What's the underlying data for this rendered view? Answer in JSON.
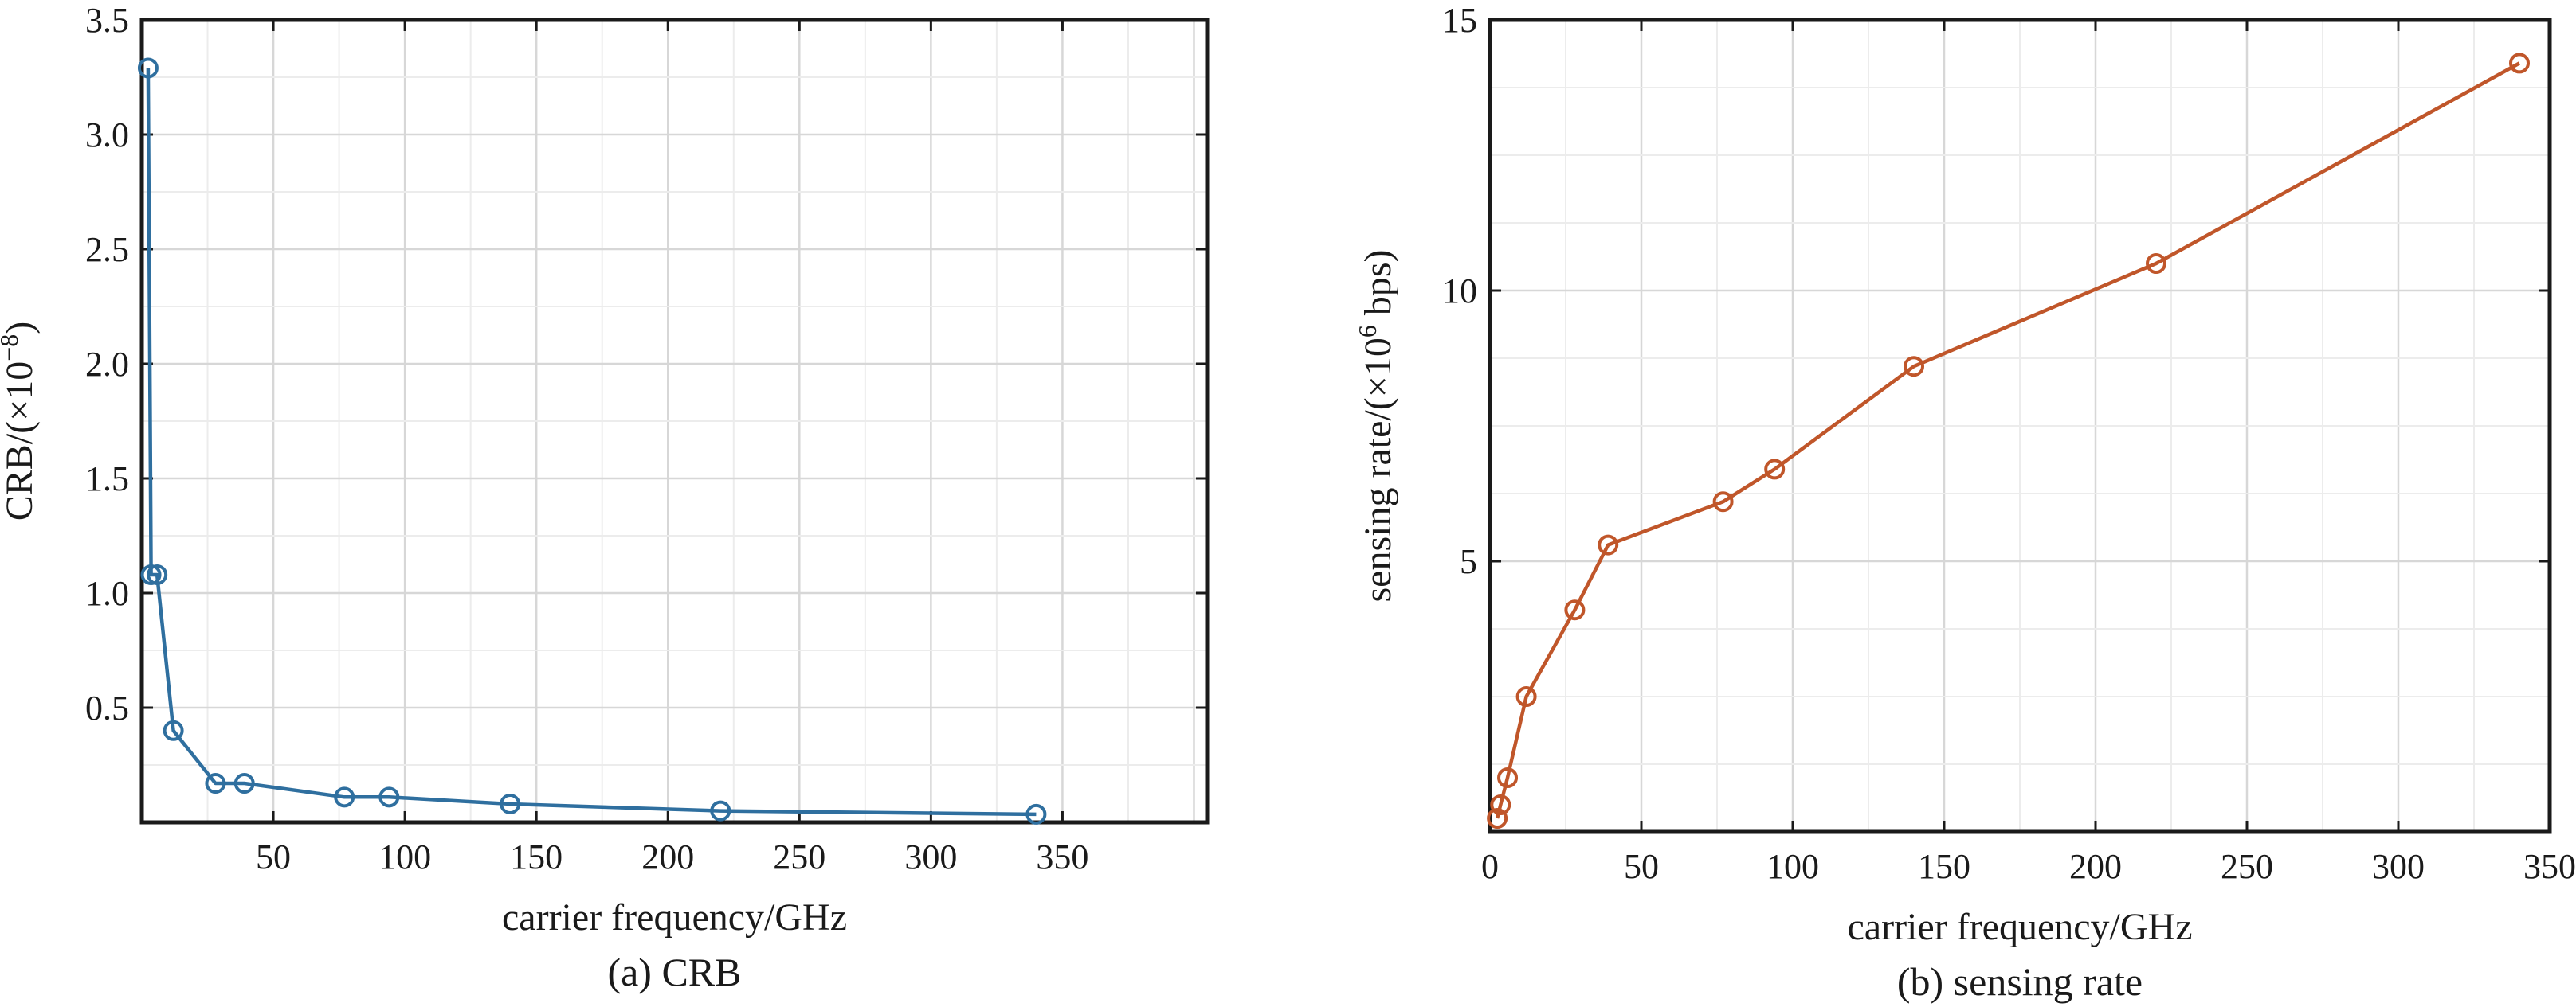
{
  "colors": {
    "series_a": "#2f6f9f",
    "series_b": "#c0562a",
    "frame": "#1a1a1a"
  },
  "chart_data": [
    {
      "type": "line",
      "caption": "(a) CRB",
      "title": "",
      "xlabel": "carrier frequency/GHz",
      "ylabel_main": "CRB/(×10",
      "ylabel_sup": "−8",
      "ylabel_close": ")",
      "xlim": [
        0,
        405
      ],
      "ylim": [
        0,
        3.5
      ],
      "xticks": [
        50,
        100,
        150,
        200,
        250,
        300,
        350
      ],
      "yticks": [
        0.5,
        1.0,
        1.5,
        2.0,
        2.5,
        3.0,
        3.5
      ],
      "xtick_labels": [
        "50",
        "100",
        "150",
        "200",
        "250",
        "300",
        "350"
      ],
      "ytick_labels": [
        "0.5",
        "1.0",
        "1.5",
        "2.0",
        "2.5",
        "3.0",
        "3.5"
      ],
      "grid": true,
      "marker": "circle",
      "series": [
        {
          "x": [
            2.4,
            3.5,
            5.8,
            12,
            28,
            39,
            77,
            94,
            140,
            220,
            340
          ],
          "y": [
            3.29,
            1.08,
            1.08,
            0.4,
            0.17,
            0.17,
            0.11,
            0.11,
            0.08,
            0.05,
            0.035
          ]
        }
      ]
    },
    {
      "type": "line",
      "caption": "(b) sensing rate",
      "title": "",
      "xlabel": "carrier frequency/GHz",
      "ylabel_main": "sensing rate/(×10",
      "ylabel_sup": "6",
      "ylabel_close": " bps)",
      "xlim": [
        0,
        350
      ],
      "ylim": [
        0,
        15
      ],
      "xticks": [
        0,
        50,
        100,
        150,
        200,
        250,
        300,
        350
      ],
      "yticks": [
        5,
        10,
        15
      ],
      "xtick_labels": [
        "0",
        "50",
        "100",
        "150",
        "200",
        "250",
        "300",
        "350"
      ],
      "ytick_labels": [
        "5",
        "10",
        "15"
      ],
      "grid": true,
      "marker": "circle",
      "series": [
        {
          "x": [
            2.4,
            3.5,
            5.8,
            12,
            28,
            39,
            77,
            94,
            140,
            220,
            340
          ],
          "y": [
            0.25,
            0.5,
            1.0,
            2.5,
            4.1,
            5.3,
            6.1,
            6.7,
            8.6,
            10.5,
            14.2
          ]
        }
      ]
    }
  ]
}
